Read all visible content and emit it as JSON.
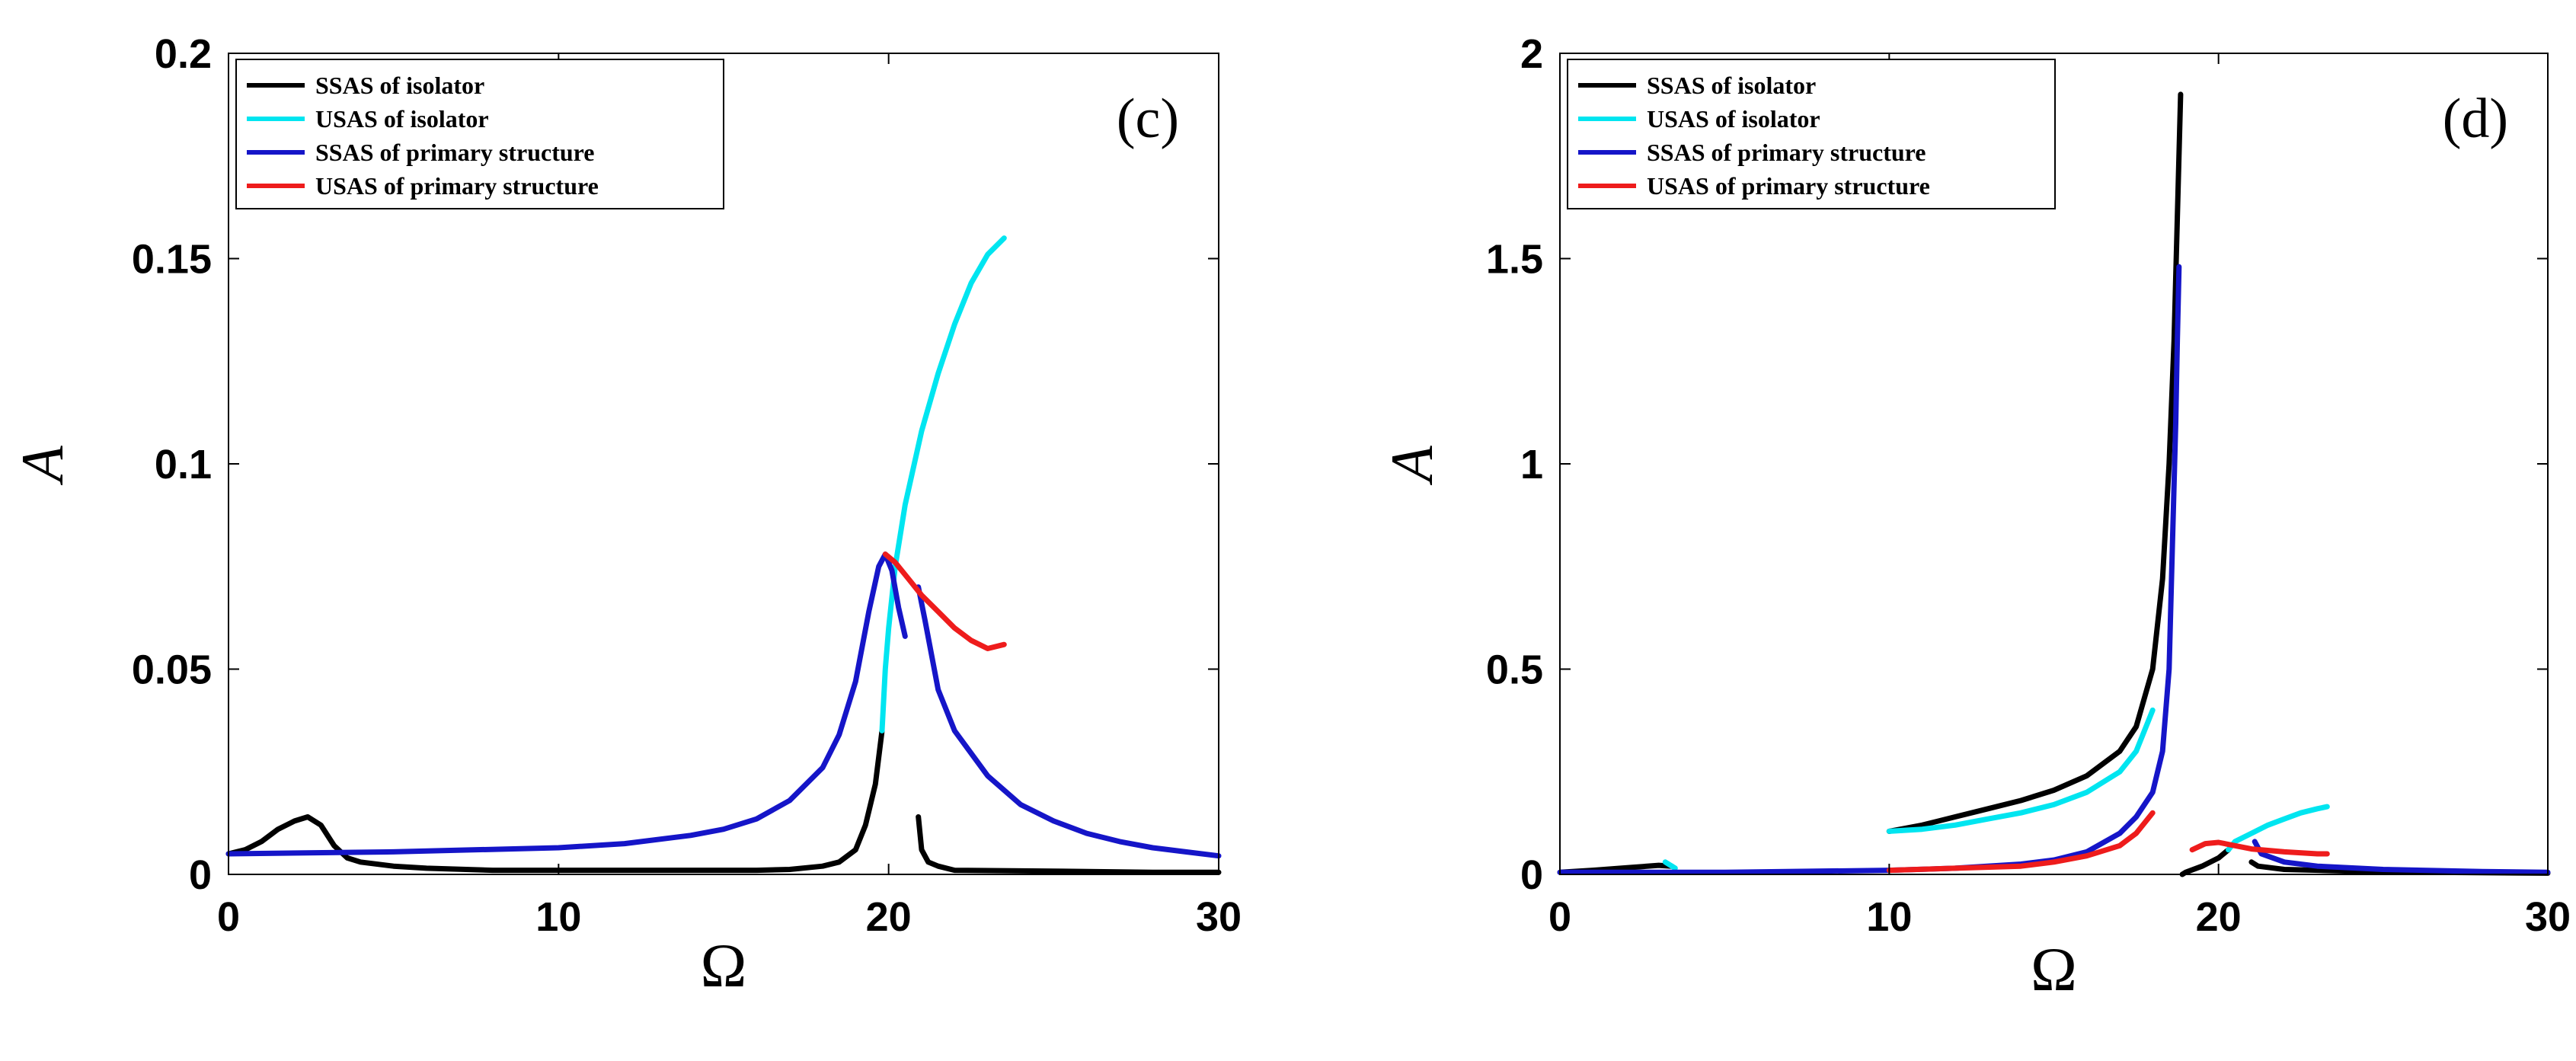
{
  "chart_data": [
    {
      "type": "line",
      "panel_label": "(c)",
      "xlabel": "Ω",
      "ylabel": "A",
      "xlim": [
        0,
        30
      ],
      "ylim": [
        0,
        0.2
      ],
      "xticks": [
        "0",
        "10",
        "20",
        "30"
      ],
      "yticks": [
        "0",
        "0.05",
        "0.1",
        "0.15",
        "0.2"
      ],
      "xtick_values": [
        0,
        10,
        20,
        30
      ],
      "ytick_values": [
        0,
        0.05,
        0.1,
        0.15,
        0.2
      ],
      "grid": false,
      "legend_position": "top-left",
      "legend": [
        "SSAS of isolator",
        "USAS of isolator",
        "SSAS of primary structure",
        "USAS of primary structure"
      ],
      "series": [
        {
          "name": "SSAS of isolator",
          "color": "#000000",
          "segments": [
            [
              [
                0,
                0.005
              ],
              [
                0.5,
                0.006
              ],
              [
                1.0,
                0.008
              ],
              [
                1.5,
                0.011
              ],
              [
                2.0,
                0.013
              ],
              [
                2.4,
                0.014
              ],
              [
                2.8,
                0.012
              ],
              [
                3.2,
                0.007
              ],
              [
                3.6,
                0.004
              ],
              [
                4.0,
                0.003
              ],
              [
                5,
                0.002
              ],
              [
                6,
                0.0015
              ],
              [
                8,
                0.001
              ],
              [
                10,
                0.001
              ],
              [
                12,
                0.001
              ],
              [
                14,
                0.001
              ],
              [
                16,
                0.001
              ],
              [
                17,
                0.0012
              ],
              [
                18,
                0.002
              ],
              [
                18.5,
                0.003
              ],
              [
                19.0,
                0.006
              ],
              [
                19.3,
                0.012
              ],
              [
                19.6,
                0.022
              ],
              [
                19.8,
                0.035
              ]
            ],
            [
              [
                20.9,
                0.014
              ],
              [
                21.0,
                0.006
              ],
              [
                21.2,
                0.003
              ],
              [
                21.5,
                0.002
              ],
              [
                22,
                0.001
              ],
              [
                25,
                0.0008
              ],
              [
                28,
                0.0005
              ],
              [
                30,
                0.0005
              ]
            ]
          ]
        },
        {
          "name": "USAS of isolator",
          "color": "#00e5f0",
          "segments": [
            [
              [
                19.8,
                0.035
              ],
              [
                19.9,
                0.05
              ],
              [
                20.0,
                0.06
              ],
              [
                20.2,
                0.075
              ],
              [
                20.5,
                0.09
              ],
              [
                21.0,
                0.108
              ],
              [
                21.5,
                0.122
              ],
              [
                22.0,
                0.134
              ],
              [
                22.5,
                0.144
              ],
              [
                23.0,
                0.151
              ],
              [
                23.5,
                0.155
              ]
            ]
          ]
        },
        {
          "name": "SSAS of primary structure",
          "color": "#1515c8",
          "segments": [
            [
              [
                0,
                0.005
              ],
              [
                5,
                0.0055
              ],
              [
                10,
                0.0065
              ],
              [
                12,
                0.0075
              ],
              [
                14,
                0.0095
              ],
              [
                15,
                0.011
              ],
              [
                16,
                0.0135
              ],
              [
                17,
                0.018
              ],
              [
                18,
                0.026
              ],
              [
                18.5,
                0.034
              ],
              [
                19.0,
                0.047
              ],
              [
                19.4,
                0.064
              ],
              [
                19.7,
                0.075
              ],
              [
                19.9,
                0.078
              ],
              [
                20.1,
                0.074
              ],
              [
                20.3,
                0.065
              ],
              [
                20.5,
                0.058
              ]
            ],
            [
              [
                20.9,
                0.07
              ],
              [
                21.1,
                0.062
              ],
              [
                21.5,
                0.045
              ],
              [
                22,
                0.035
              ],
              [
                23,
                0.024
              ],
              [
                24,
                0.017
              ],
              [
                25,
                0.013
              ],
              [
                26,
                0.01
              ],
              [
                27,
                0.008
              ],
              [
                28,
                0.0065
              ],
              [
                29,
                0.0055
              ],
              [
                30,
                0.0045
              ]
            ]
          ]
        },
        {
          "name": "USAS of primary structure",
          "color": "#ee1c1c",
          "segments": [
            [
              [
                19.9,
                0.078
              ],
              [
                20.2,
                0.076
              ],
              [
                20.6,
                0.072
              ],
              [
                21.0,
                0.068
              ],
              [
                21.5,
                0.064
              ],
              [
                22.0,
                0.06
              ],
              [
                22.5,
                0.057
              ],
              [
                23.0,
                0.055
              ],
              [
                23.5,
                0.056
              ]
            ]
          ]
        }
      ]
    },
    {
      "type": "line",
      "panel_label": "(d)",
      "xlabel": "Ω",
      "ylabel": "A",
      "xlim": [
        0,
        30
      ],
      "ylim": [
        0,
        2
      ],
      "xticks": [
        "0",
        "10",
        "20",
        "30"
      ],
      "yticks": [
        "0",
        "0.5",
        "1",
        "1.5",
        "2"
      ],
      "xtick_values": [
        0,
        10,
        20,
        30
      ],
      "ytick_values": [
        0,
        0.5,
        1,
        1.5,
        2
      ],
      "grid": false,
      "legend_position": "top-left",
      "legend": [
        "SSAS of isolator",
        "USAS of isolator",
        "SSAS of primary structure",
        "USAS of primary structure"
      ],
      "series": [
        {
          "name": "SSAS of isolator",
          "color": "#000000",
          "segments": [
            [
              [
                0,
                0.005
              ],
              [
                1,
                0.01
              ],
              [
                2,
                0.016
              ],
              [
                3,
                0.022
              ],
              [
                3.4,
                0.02
              ]
            ],
            [
              [
                10,
                0.105
              ],
              [
                11,
                0.12
              ],
              [
                12,
                0.14
              ],
              [
                13,
                0.16
              ],
              [
                14,
                0.18
              ],
              [
                15,
                0.205
              ],
              [
                16,
                0.24
              ],
              [
                17,
                0.3
              ],
              [
                17.5,
                0.36
              ],
              [
                18,
                0.5
              ],
              [
                18.3,
                0.72
              ],
              [
                18.5,
                1.0
              ],
              [
                18.65,
                1.3
              ],
              [
                18.75,
                1.6
              ],
              [
                18.85,
                1.9
              ]
            ],
            [
              [
                18.9,
                0.0
              ],
              [
                19.0,
                0.005
              ],
              [
                19.5,
                0.02
              ],
              [
                20,
                0.04
              ],
              [
                20.3,
                0.06
              ]
            ],
            [
              [
                21.0,
                0.03
              ],
              [
                21.2,
                0.02
              ],
              [
                22,
                0.012
              ],
              [
                25,
                0.006
              ],
              [
                30,
                0.003
              ]
            ]
          ]
        },
        {
          "name": "USAS of isolator",
          "color": "#00e5f0",
          "segments": [
            [
              [
                3.2,
                0.03
              ],
              [
                3.5,
                0.015
              ]
            ],
            [
              [
                10,
                0.105
              ],
              [
                11,
                0.11
              ],
              [
                12,
                0.12
              ],
              [
                13,
                0.135
              ],
              [
                14,
                0.15
              ],
              [
                15,
                0.17
              ],
              [
                16,
                0.2
              ],
              [
                17,
                0.25
              ],
              [
                17.5,
                0.3
              ],
              [
                18,
                0.4
              ]
            ],
            [
              [
                20.3,
                0.06
              ],
              [
                20.5,
                0.08
              ],
              [
                21,
                0.1
              ],
              [
                21.5,
                0.12
              ],
              [
                22,
                0.135
              ],
              [
                22.5,
                0.15
              ],
              [
                23,
                0.16
              ],
              [
                23.3,
                0.165
              ]
            ]
          ]
        },
        {
          "name": "SSAS of primary structure",
          "color": "#1515c8",
          "segments": [
            [
              [
                0,
                0.005
              ],
              [
                5,
                0.005
              ],
              [
                10,
                0.01
              ],
              [
                12,
                0.015
              ],
              [
                14,
                0.025
              ],
              [
                15,
                0.035
              ],
              [
                16,
                0.055
              ],
              [
                17,
                0.1
              ],
              [
                17.5,
                0.14
              ],
              [
                18,
                0.2
              ],
              [
                18.3,
                0.3
              ],
              [
                18.5,
                0.5
              ],
              [
                18.6,
                0.8
              ],
              [
                18.7,
                1.1
              ],
              [
                18.75,
                1.3
              ],
              [
                18.8,
                1.48
              ]
            ],
            [
              [
                21.1,
                0.08
              ],
              [
                21.3,
                0.05
              ],
              [
                22,
                0.03
              ],
              [
                23,
                0.02
              ],
              [
                25,
                0.012
              ],
              [
                28,
                0.007
              ],
              [
                30,
                0.005
              ]
            ]
          ]
        },
        {
          "name": "USAS of primary structure",
          "color": "#ee1c1c",
          "segments": [
            [
              [
                10,
                0.01
              ],
              [
                12,
                0.015
              ],
              [
                14,
                0.02
              ],
              [
                15,
                0.03
              ],
              [
                16,
                0.045
              ],
              [
                17,
                0.07
              ],
              [
                17.5,
                0.1
              ],
              [
                18,
                0.15
              ]
            ],
            [
              [
                19.2,
                0.06
              ],
              [
                19.6,
                0.075
              ],
              [
                20,
                0.078
              ],
              [
                20.5,
                0.07
              ],
              [
                21,
                0.062
              ],
              [
                22,
                0.055
              ],
              [
                23,
                0.05
              ],
              [
                23.3,
                0.05
              ]
            ]
          ]
        }
      ]
    }
  ]
}
